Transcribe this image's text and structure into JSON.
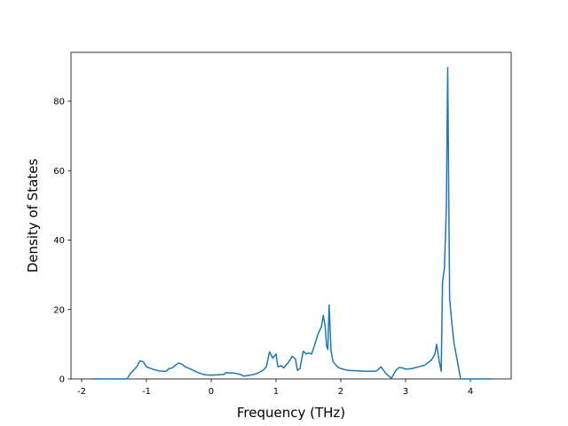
{
  "chart_data": {
    "type": "line",
    "xlabel": "Frequency (THz)",
    "ylabel": "Density of States",
    "color": "#1f77b4",
    "x": [
      -1.85,
      -1.3,
      -1.25,
      -1.15,
      -1.1,
      -1.05,
      -1.0,
      -0.9,
      -0.8,
      -0.7,
      -0.65,
      -0.6,
      -0.55,
      -0.5,
      -0.45,
      -0.4,
      -0.3,
      -0.2,
      -0.1,
      0,
      0.1,
      0.2,
      0.22,
      0.35,
      0.45,
      0.5,
      0.6,
      0.7,
      0.8,
      0.85,
      0.9,
      0.95,
      1.0,
      1.03,
      1.08,
      1.12,
      1.2,
      1.25,
      1.3,
      1.33,
      1.37,
      1.42,
      1.47,
      1.5,
      1.55,
      1.6,
      1.65,
      1.7,
      1.73,
      1.76,
      1.78,
      1.8,
      1.82,
      1.85,
      1.88,
      1.95,
      2.0,
      2.1,
      2.4,
      2.55,
      2.62,
      2.7,
      2.78,
      2.85,
      2.9,
      2.95,
      3.0,
      3.1,
      3.2,
      3.3,
      3.4,
      3.45,
      3.48,
      3.52,
      3.55,
      3.57,
      3.6,
      3.63,
      3.65,
      3.68,
      3.72,
      3.75,
      3.8,
      3.83,
      3.85,
      4.33
    ],
    "values": [
      0,
      0,
      1.5,
      3.5,
      5.2,
      5,
      3.5,
      2.8,
      2.3,
      2.2,
      3,
      3.2,
      4,
      4.6,
      4.2,
      3.5,
      2.7,
      1.8,
      1.2,
      1.1,
      1.2,
      1.3,
      1.8,
      1.7,
      1.3,
      0.8,
      1.1,
      1.5,
      2.5,
      3.5,
      7.8,
      6,
      7.2,
      3.5,
      3.8,
      3.2,
      5,
      6.5,
      5.8,
      2.5,
      3,
      8,
      7.2,
      7.5,
      7.2,
      10,
      13,
      15,
      18.3,
      15,
      9.5,
      8.5,
      21.3,
      8,
      5,
      3.5,
      3,
      2.5,
      2.2,
      2.3,
      3.5,
      1.5,
      0.2,
      2.5,
      3.3,
      3.2,
      2.8,
      3,
      3.5,
      4,
      5.5,
      7,
      10,
      5,
      2.2,
      28,
      32,
      50,
      89.7,
      23,
      15,
      10,
      5,
      2,
      0,
      0
    ],
    "xlim": [
      -2.164,
      4.63
    ],
    "ylim": [
      0,
      94.06
    ],
    "xticks": [
      -2,
      -1,
      0,
      1,
      2,
      3,
      4
    ],
    "yticks": [
      0,
      20,
      40,
      60,
      80
    ]
  }
}
